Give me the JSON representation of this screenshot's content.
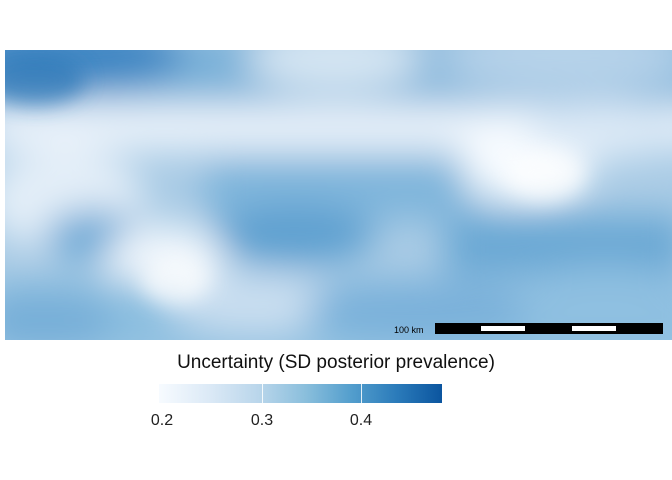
{
  "map": {
    "colors": {
      "low": "#f7fbff",
      "mid": "#89bedc",
      "high": "#0b559f"
    }
  },
  "scalebar": {
    "label": "100 km",
    "segments": 5
  },
  "legend": {
    "title": "Uncertainty (SD posterior prevalence)",
    "ticks": [
      "0.2",
      "0.3",
      "0.4"
    ]
  }
}
